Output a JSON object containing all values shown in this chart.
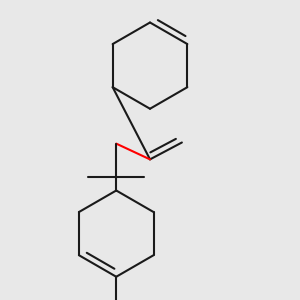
{
  "bg_color": "#e8e8e8",
  "bond_color": "#1a1a1a",
  "oxygen_color": "#ff0000",
  "line_width": 1.5,
  "fig_size": [
    3.0,
    3.0
  ],
  "dpi": 100
}
